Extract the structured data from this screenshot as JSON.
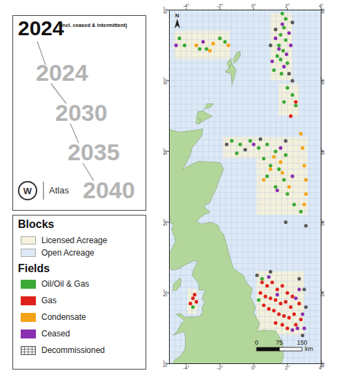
{
  "chart_data": {
    "type": "map",
    "title": "2024",
    "subtitle": "(incl. ceased & intermittent)",
    "timeline": [
      "2024",
      "2030",
      "2035",
      "2040"
    ],
    "logo_text": "W",
    "brand": "Atlas",
    "north_label": "N",
    "legend_headings": {
      "blocks": "Blocks",
      "fields": "Fields"
    },
    "blocks": [
      {
        "name": "Licensed Acreage",
        "color": "#f4f1dc"
      },
      {
        "name": "Open Acreage",
        "color": "#dde9f6"
      }
    ],
    "series": [
      {
        "name": "Oil/Oil & Gas",
        "color": "#3aa935",
        "marker": "circle",
        "points": [
          [
            1.8,
            61.5
          ],
          [
            1.6,
            61.3
          ],
          [
            1.9,
            61.15
          ],
          [
            1.5,
            61.0
          ],
          [
            1.75,
            60.85
          ],
          [
            1.4,
            60.7
          ],
          [
            1.6,
            60.6
          ],
          [
            2.0,
            60.5
          ],
          [
            1.2,
            60.3
          ],
          [
            1.65,
            60.2
          ],
          [
            1.9,
            61.75
          ],
          [
            1.7,
            61.9
          ],
          [
            -4.4,
            61.2
          ],
          [
            -4.1,
            61.0
          ],
          [
            -2.8,
            60.9
          ],
          [
            -2.0,
            61.2
          ],
          [
            -1.7,
            61.1
          ],
          [
            -3.2,
            60.9
          ],
          [
            2.0,
            59.8
          ],
          [
            2.3,
            59.6
          ],
          [
            1.8,
            59.4
          ],
          [
            2.5,
            59.3
          ],
          [
            -1.3,
            58.3
          ],
          [
            -0.8,
            58.2
          ],
          [
            -0.2,
            58.3
          ],
          [
            0.3,
            58.1
          ],
          [
            0.8,
            58.2
          ],
          [
            1.3,
            58.0
          ],
          [
            -1.0,
            57.95
          ],
          [
            0.6,
            57.8
          ],
          [
            1.0,
            57.6
          ],
          [
            1.5,
            57.5
          ],
          [
            1.8,
            57.2
          ],
          [
            1.3,
            57.0
          ],
          [
            2.0,
            56.8
          ],
          [
            2.4,
            56.5
          ],
          [
            2.8,
            56.3
          ],
          [
            0.8,
            57.3
          ],
          [
            1.9,
            57.9
          ],
          [
            0.5,
            54.4
          ],
          [
            0.3,
            53.8
          ],
          [
            -3.6,
            53.6
          ]
        ]
      },
      {
        "name": "Gas",
        "color": "#e0201b",
        "marker": "circle",
        "points": [
          [
            2.5,
            59.4
          ],
          [
            2.2,
            59.0
          ],
          [
            0.5,
            54.3
          ],
          [
            0.8,
            54.2
          ],
          [
            1.1,
            54.3
          ],
          [
            1.4,
            54.1
          ],
          [
            1.7,
            54.2
          ],
          [
            2.0,
            54.0
          ],
          [
            0.4,
            54.0
          ],
          [
            0.7,
            53.9
          ],
          [
            1.0,
            53.85
          ],
          [
            1.3,
            53.8
          ],
          [
            1.6,
            53.7
          ],
          [
            1.9,
            53.75
          ],
          [
            2.2,
            53.6
          ],
          [
            0.9,
            53.55
          ],
          [
            1.2,
            53.5
          ],
          [
            1.5,
            53.4
          ],
          [
            1.8,
            53.35
          ],
          [
            2.1,
            53.3
          ],
          [
            2.4,
            53.4
          ],
          [
            1.3,
            53.15
          ],
          [
            1.7,
            53.1
          ],
          [
            2.0,
            53.0
          ],
          [
            2.5,
            53.1
          ],
          [
            2.8,
            53.25
          ],
          [
            0.6,
            53.65
          ],
          [
            2.3,
            53.9
          ],
          [
            2.7,
            53.7
          ],
          [
            -3.6,
            53.85
          ],
          [
            -3.5,
            53.95
          ],
          [
            -3.75,
            53.7
          ],
          [
            -3.4,
            53.75
          ]
        ]
      },
      {
        "name": "Condensate",
        "color": "#f5a316",
        "marker": "circle",
        "points": [
          [
            -3.4,
            61.0
          ],
          [
            -2.6,
            60.85
          ],
          [
            -2.4,
            61.05
          ],
          [
            -1.5,
            61.0
          ],
          [
            2.8,
            58.5
          ],
          [
            2.9,
            58.1
          ],
          [
            3.0,
            57.6
          ],
          [
            3.1,
            57.2
          ],
          [
            3.1,
            56.8
          ],
          [
            3.0,
            56.5
          ],
          [
            1.2,
            57.85
          ],
          [
            1.6,
            57.7
          ],
          [
            1.7,
            57.4
          ],
          [
            2.1,
            57.0
          ],
          [
            1.0,
            57.5
          ],
          [
            0.6,
            57.2
          ]
        ]
      },
      {
        "name": "Ceased",
        "color": "#8a2fb0",
        "marker": "circle",
        "points": [
          [
            1.7,
            61.6
          ],
          [
            1.3,
            61.2
          ],
          [
            2.1,
            61.35
          ],
          [
            1.5,
            60.9
          ],
          [
            1.95,
            60.75
          ],
          [
            1.8,
            60.4
          ],
          [
            1.1,
            60.55
          ],
          [
            2.2,
            61.0
          ],
          [
            -4.6,
            61.0
          ],
          [
            -3.0,
            61.1
          ],
          [
            0.0,
            58.2
          ],
          [
            1.6,
            58.1
          ],
          [
            2.3,
            57.3
          ],
          [
            1.4,
            56.9
          ],
          [
            2.6,
            53.0
          ],
          [
            2.9,
            53.4
          ],
          [
            3.0,
            53.0
          ],
          [
            2.3,
            52.95
          ],
          [
            1.4,
            53.95
          ],
          [
            2.5,
            53.85
          ],
          [
            0.9,
            54.45
          ],
          [
            2.7,
            54.1
          ]
        ]
      },
      {
        "name": "Decommissioned",
        "color": "#5a5a5a",
        "marker": "circle",
        "points": [
          [
            1.3,
            61.45
          ],
          [
            1.0,
            61.0
          ],
          [
            2.1,
            60.2
          ],
          [
            2.3,
            61.65
          ],
          [
            2.3,
            60.0
          ],
          [
            -1.6,
            58.2
          ],
          [
            -0.5,
            58.05
          ],
          [
            0.4,
            58.35
          ],
          [
            1.9,
            58.3
          ],
          [
            3.1,
            55.9
          ],
          [
            1.9,
            56.0
          ],
          [
            2.7,
            54.4
          ],
          [
            3.0,
            54.1
          ],
          [
            1.0,
            54.6
          ],
          [
            0.2,
            54.5
          ],
          [
            2.9,
            52.8
          ],
          [
            3.1,
            53.6
          ]
        ]
      }
    ],
    "licensed_acreage": [
      [
        1.0,
        60.0,
        2.3,
        61.9
      ],
      [
        -4.7,
        60.6,
        -1.4,
        61.4
      ],
      [
        0.2,
        56.2,
        3.2,
        58.4
      ],
      [
        -1.8,
        57.8,
        0.3,
        58.4
      ],
      [
        0.2,
        52.8,
        3.0,
        54.6
      ],
      [
        -3.9,
        53.4,
        -3.3,
        54.1
      ],
      [
        1.5,
        59.0,
        2.7,
        59.9
      ]
    ],
    "land": [
      [
        [
          -6,
          58.55
        ],
        [
          -5.0,
          58.62
        ],
        [
          -4.4,
          58.55
        ],
        [
          -3.5,
          58.6
        ],
        [
          -3.02,
          58.64
        ],
        [
          -3.08,
          58.44
        ],
        [
          -3.65,
          58.1
        ],
        [
          -3.78,
          57.86
        ],
        [
          -4.2,
          57.5
        ],
        [
          -3.87,
          57.59
        ],
        [
          -3.28,
          57.72
        ],
        [
          -2.0,
          57.69
        ],
        [
          -1.78,
          57.5
        ],
        [
          -2.08,
          57.15
        ],
        [
          -2.2,
          56.96
        ],
        [
          -2.47,
          56.71
        ],
        [
          -2.58,
          56.56
        ],
        [
          -2.95,
          56.45
        ],
        [
          -2.58,
          56.28
        ],
        [
          -3.0,
          56.2
        ],
        [
          -3.4,
          56.02
        ],
        [
          -3.1,
          55.95
        ],
        [
          -2.52,
          56.0
        ],
        [
          -2.13,
          55.92
        ],
        [
          -2.0,
          55.77
        ],
        [
          -1.8,
          55.67
        ],
        [
          -1.57,
          55.33
        ],
        [
          -1.42,
          55.02
        ],
        [
          -1.2,
          54.69
        ],
        [
          -0.6,
          54.49
        ],
        [
          -0.4,
          54.28
        ],
        [
          -0.08,
          54.12
        ],
        [
          -0.2,
          53.9
        ],
        [
          0.12,
          53.58
        ],
        [
          0.0,
          53.45
        ],
        [
          0.35,
          53.14
        ],
        [
          0.2,
          52.9
        ],
        [
          0.5,
          52.95
        ],
        [
          1.3,
          52.93
        ],
        [
          1.73,
          52.6
        ],
        [
          1.76,
          52.2
        ],
        [
          1.6,
          51.9
        ],
        [
          -4.9,
          51.9
        ],
        [
          -4.7,
          52.1
        ],
        [
          -4.36,
          52.21
        ],
        [
          -4.08,
          52.41
        ],
        [
          -4.05,
          52.55
        ],
        [
          -4.05,
          52.72
        ],
        [
          -4.1,
          52.86
        ],
        [
          -4.15,
          52.9
        ],
        [
          -4.4,
          52.88
        ],
        [
          -4.75,
          52.8
        ],
        [
          -4.5,
          52.95
        ],
        [
          -4.3,
          53.13
        ],
        [
          -4.1,
          53.22
        ],
        [
          -4.6,
          53.4
        ],
        [
          -4.3,
          53.42
        ],
        [
          -4.05,
          53.3
        ],
        [
          -3.85,
          53.33
        ],
        [
          -3.5,
          53.32
        ],
        [
          -3.1,
          53.35
        ],
        [
          -3.15,
          53.4
        ],
        [
          -3.0,
          53.45
        ],
        [
          -3.08,
          53.55
        ],
        [
          -3.0,
          53.65
        ],
        [
          -2.9,
          53.73
        ],
        [
          -3.05,
          53.82
        ],
        [
          -3.0,
          53.93
        ],
        [
          -2.85,
          54.08
        ],
        [
          -3.25,
          54.08
        ],
        [
          -3.25,
          54.25
        ],
        [
          -3.64,
          54.5
        ],
        [
          -3.57,
          54.65
        ],
        [
          -3.3,
          54.9
        ],
        [
          -3.6,
          54.9
        ],
        [
          -4.05,
          54.8
        ],
        [
          -4.35,
          54.7
        ],
        [
          -4.85,
          54.64
        ],
        [
          -5.15,
          54.85
        ],
        [
          -5.1,
          55.05
        ],
        [
          -4.85,
          55.25
        ],
        [
          -4.63,
          55.47
        ],
        [
          -4.68,
          55.55
        ],
        [
          -4.87,
          55.8
        ],
        [
          -4.75,
          55.95
        ],
        [
          -4.9,
          55.95
        ],
        [
          -5.0,
          56.2
        ],
        [
          -6,
          56.2
        ]
      ],
      [
        [
          -4.8,
          54.05
        ],
        [
          -4.75,
          54.25
        ],
        [
          -4.4,
          54.42
        ],
        [
          -4.3,
          54.38
        ],
        [
          -4.35,
          54.2
        ],
        [
          -4.6,
          54.06
        ]
      ],
      [
        [
          -3.4,
          58.95
        ],
        [
          -3.3,
          59.13
        ],
        [
          -3.0,
          59.15
        ],
        [
          -2.7,
          59.05
        ],
        [
          -2.45,
          59.0
        ],
        [
          -2.85,
          58.9
        ],
        [
          -3.2,
          58.8
        ],
        [
          -3.35,
          58.85
        ]
      ],
      [
        [
          -3.45,
          58.8
        ],
        [
          -3.2,
          58.78
        ],
        [
          -3.15,
          58.9
        ],
        [
          -3.4,
          58.93
        ]
      ],
      [
        [
          -2.95,
          59.2
        ],
        [
          -2.55,
          59.25
        ],
        [
          -2.4,
          59.35
        ],
        [
          -2.8,
          59.35
        ]
      ],
      [
        [
          -1.3,
          59.85
        ],
        [
          -1.15,
          60.1
        ],
        [
          -1.05,
          60.3
        ],
        [
          -1.3,
          60.5
        ],
        [
          -1.45,
          60.35
        ],
        [
          -1.6,
          60.3
        ],
        [
          -1.7,
          60.25
        ],
        [
          -1.35,
          60.2
        ],
        [
          -1.3,
          59.95
        ]
      ],
      [
        [
          -1.5,
          60.35
        ],
        [
          -1.3,
          60.5
        ],
        [
          -1.35,
          60.63
        ],
        [
          -1.6,
          60.5
        ]
      ],
      [
        [
          -1.2,
          60.5
        ],
        [
          -1.0,
          60.55
        ],
        [
          -0.8,
          60.7
        ],
        [
          -0.8,
          60.83
        ],
        [
          -1.0,
          60.8
        ],
        [
          -1.15,
          60.65
        ],
        [
          -1.25,
          60.6
        ]
      ]
    ],
    "xlim": [
      -5,
      4
    ],
    "ylim": [
      52,
      62
    ],
    "xticks": [
      {
        "value": -4,
        "label": "-4°"
      },
      {
        "value": -2,
        "label": "-2°"
      },
      {
        "value": 0,
        "label": "0°"
      },
      {
        "value": 2,
        "label": "2°"
      },
      {
        "value": 4,
        "label": "4°"
      }
    ],
    "yticks": [
      {
        "value": 52,
        "label": "52°"
      },
      {
        "value": 54,
        "label": "54°"
      },
      {
        "value": 56,
        "label": "56°"
      },
      {
        "value": 58,
        "label": "58°"
      },
      {
        "value": 60,
        "label": "60°"
      },
      {
        "value": 62,
        "label": "62°"
      }
    ],
    "grid": true,
    "scale_bar": {
      "ticks": [
        0,
        75,
        150
      ],
      "unit": "km"
    }
  }
}
